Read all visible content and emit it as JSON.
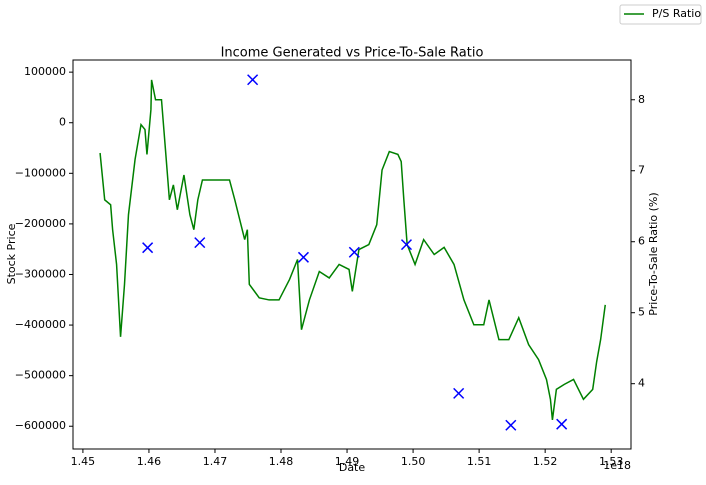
{
  "chart_data": {
    "type": "line",
    "title": "Income Generated vs Price-To-Sale Ratio",
    "x_label": "Date",
    "x_offset_label": "1e18",
    "y_label": "Stock Price",
    "y2_label": "Price-To-Sale Ratio (%)",
    "xlim": [
      1.4485,
      1.533
    ],
    "xticks": [
      1.45,
      1.46,
      1.47,
      1.48,
      1.49,
      {
        "value": 1.5,
        "label": "1.50"
      },
      1.51,
      1.52,
      1.53
    ],
    "ylim": [
      -645000,
      124000
    ],
    "yticks": [
      {
        "value": -600000,
        "label": "−600000"
      },
      {
        "value": -500000,
        "label": "−500000"
      },
      {
        "value": -400000,
        "label": "−400000"
      },
      {
        "value": -300000,
        "label": "−300000"
      },
      {
        "value": -200000,
        "label": "−200000"
      },
      {
        "value": -100000,
        "label": "−100000"
      },
      0,
      100000
    ],
    "y2lim": [
      3.08,
      8.56
    ],
    "y2ticks": [
      4,
      5,
      6,
      7,
      8
    ],
    "legend": "upper right outside",
    "series": [
      {
        "type": "line",
        "name": "P/S Ratio",
        "color": "#008000",
        "axis": "y2",
        "x": [
          1.4526,
          1.4533,
          1.4542,
          1.4545,
          1.4551,
          1.4557,
          1.4563,
          1.4569,
          1.4579,
          1.4588,
          1.4594,
          1.4597,
          1.4603,
          1.4604,
          1.461,
          1.4619,
          1.4625,
          1.4631,
          1.4637,
          1.4643,
          1.4653,
          1.4662,
          1.4668,
          1.4674,
          1.4681,
          1.4692,
          1.4707,
          1.4722,
          1.473,
          1.4745,
          1.4749,
          1.4752,
          1.4767,
          1.4782,
          1.4797,
          1.4813,
          1.4825,
          1.4831,
          1.4843,
          1.4858,
          1.4873,
          1.4888,
          1.4903,
          1.4908,
          1.4918,
          1.4933,
          1.4945,
          1.4953,
          1.4964,
          1.4977,
          1.4982,
          1.4986,
          1.4991,
          1.5003,
          1.5016,
          1.5032,
          1.5047,
          1.5062,
          1.5077,
          1.5092,
          1.5107,
          1.5115,
          1.513,
          1.5145,
          1.516,
          1.5175,
          1.519,
          1.5202,
          1.5208,
          1.5211,
          1.5217,
          1.5229,
          1.5243,
          1.5258,
          1.5272,
          1.5278,
          1.5284,
          1.5291
        ],
        "values": [
          7.25,
          6.59,
          6.52,
          6.17,
          5.68,
          4.66,
          5.4,
          6.38,
          7.16,
          7.65,
          7.58,
          7.23,
          7.86,
          8.28,
          8.0,
          8.0,
          7.3,
          6.59,
          6.8,
          6.45,
          6.94,
          6.38,
          6.17,
          6.59,
          6.87,
          6.87,
          6.87,
          6.87,
          6.59,
          6.03,
          6.17,
          5.4,
          5.21,
          5.18,
          5.18,
          5.47,
          5.75,
          4.76,
          5.18,
          5.58,
          5.49,
          5.68,
          5.61,
          5.3,
          5.89,
          5.96,
          6.24,
          7.01,
          7.27,
          7.23,
          7.13,
          6.59,
          5.96,
          5.68,
          6.03,
          5.82,
          5.92,
          5.68,
          5.18,
          4.83,
          4.83,
          5.18,
          4.62,
          4.62,
          4.93,
          4.55,
          4.34,
          4.06,
          3.78,
          3.49,
          3.92,
          3.99,
          4.06,
          3.78,
          3.92,
          4.31,
          4.62,
          5.11
        ]
      },
      {
        "type": "scatter",
        "color": "#0000ff",
        "marker": "x",
        "x": [
          1.4598,
          1.4677,
          1.4757,
          1.4834,
          1.4911,
          1.499,
          1.5069,
          1.5148,
          1.5225
        ],
        "values": [
          -247000,
          -237000,
          85000,
          -266000,
          -256000,
          -241000,
          -535000,
          -598000,
          -596000
        ]
      }
    ]
  }
}
